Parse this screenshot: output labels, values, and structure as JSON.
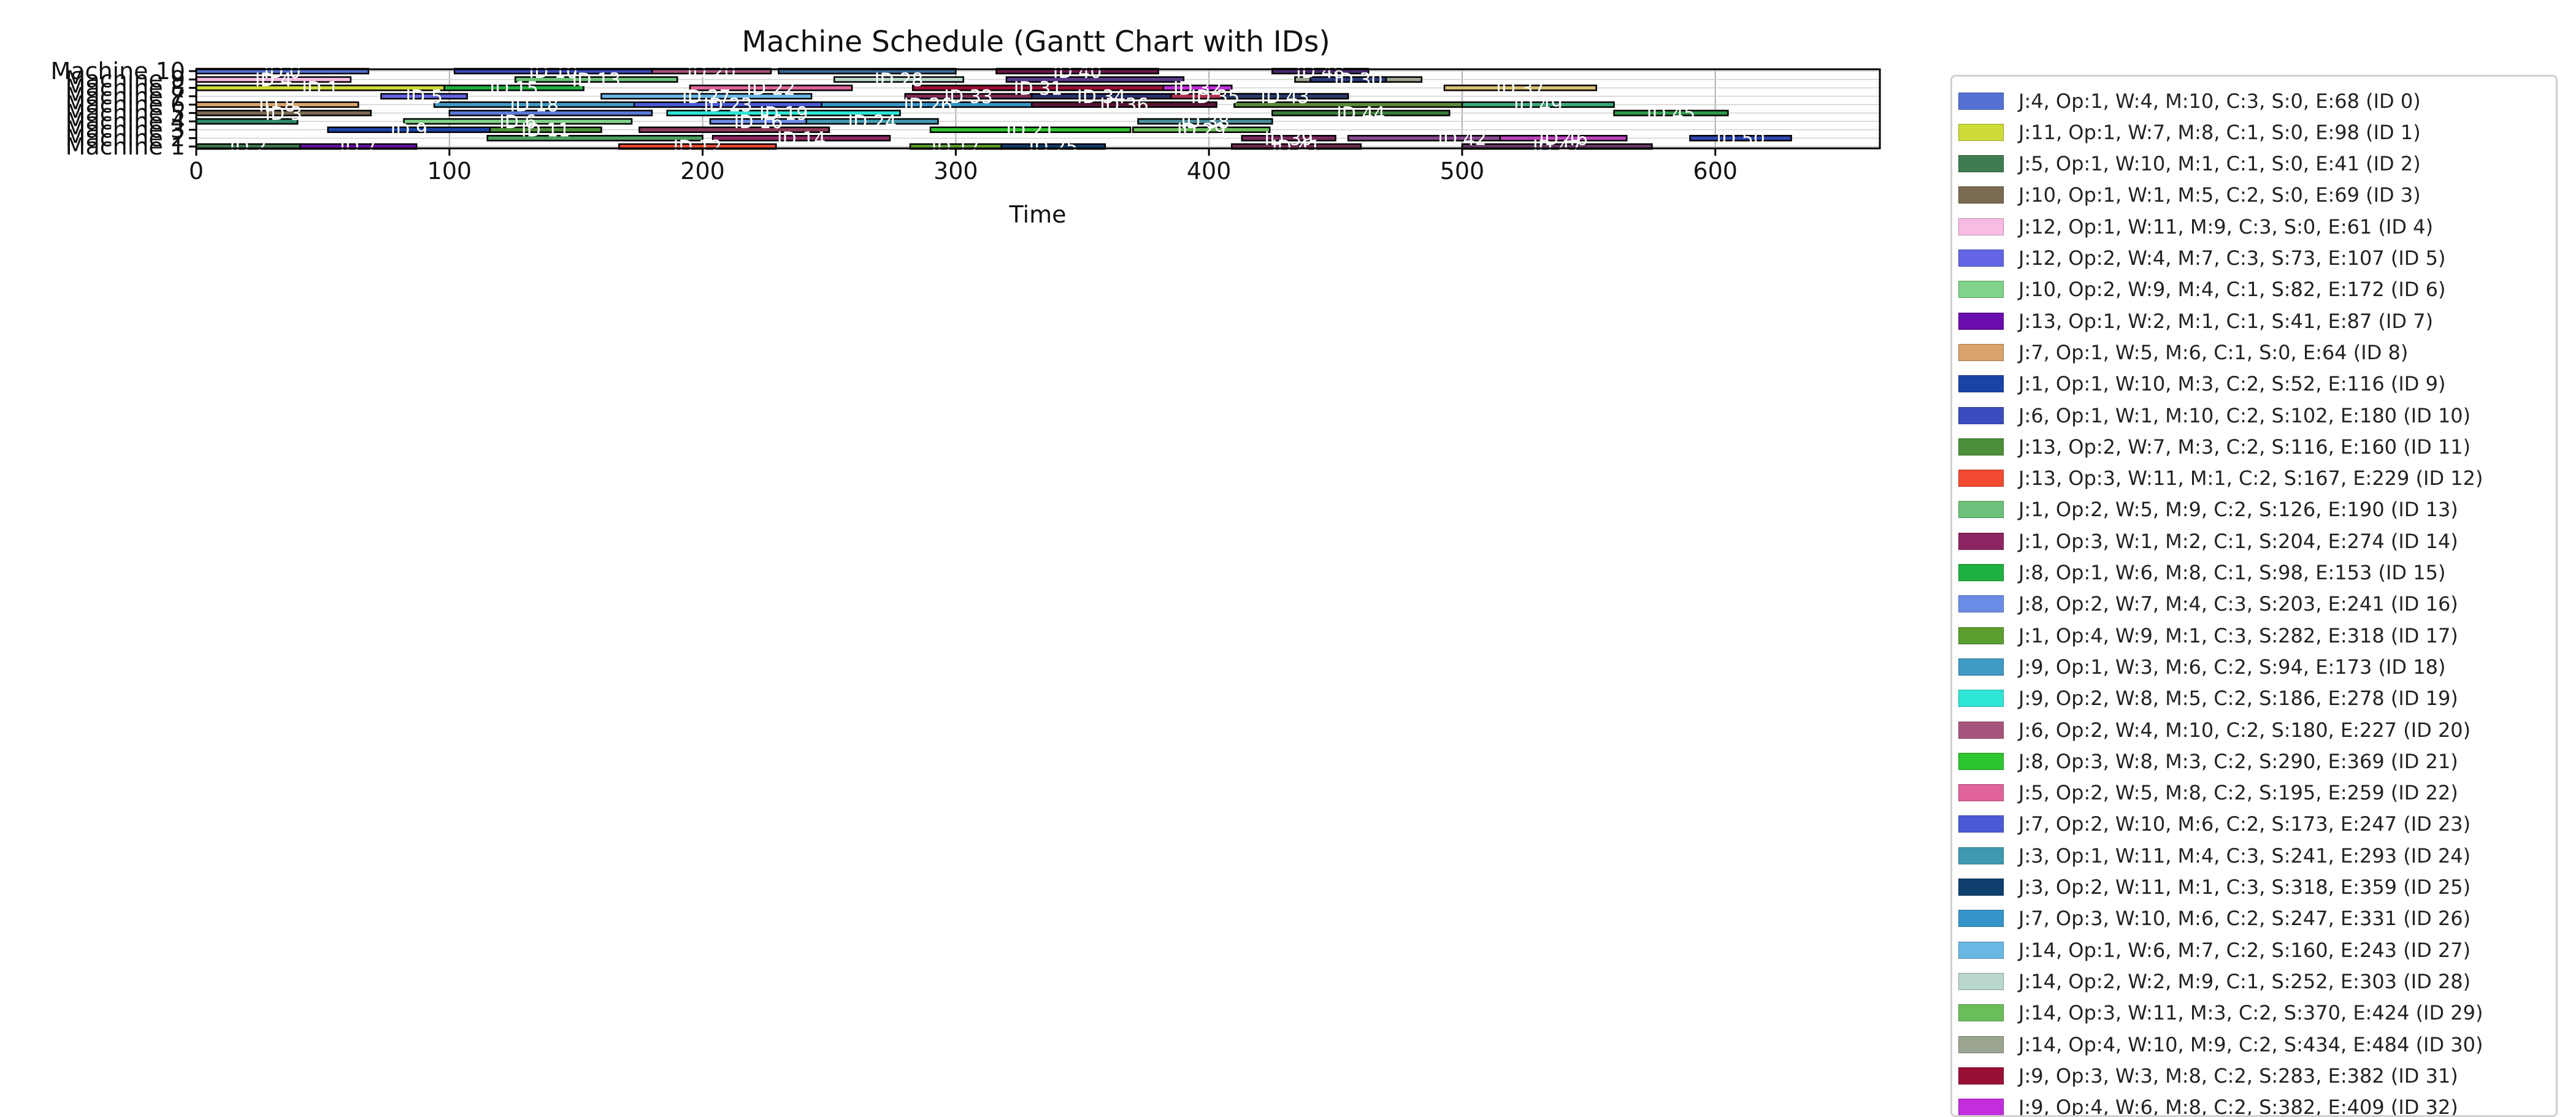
{
  "chart_data": {
    "type": "gantt",
    "title": "Machine Schedule (Gantt Chart with IDs)",
    "xlabel": "Time",
    "ylabel": "",
    "xlim": [
      0,
      665
    ],
    "xticks": [
      0,
      100,
      200,
      300,
      400,
      500,
      600
    ],
    "grid": true,
    "legend_placement": "right, outside plot",
    "machines": [
      "Machine 1",
      "Machine 2",
      "Machine 3",
      "Machine 4",
      "Machine 5",
      "Machine 6",
      "Machine 7",
      "Machine 8",
      "Machine 9",
      "Machine 10"
    ],
    "tasks": [
      {
        "id": 0,
        "label": "ID 0",
        "legend": "J:4, Op:1, W:4, M:10, C:3, S:0, E:68 (ID 0)",
        "machine": 10,
        "start": 0,
        "end": 68,
        "color": "#5472d3"
      },
      {
        "id": 1,
        "label": "ID 1",
        "legend": "J:11, Op:1, W:7, M:8, C:1, S:0, E:98 (ID 1)",
        "machine": 8,
        "start": 0,
        "end": 98,
        "color": "#cddc39"
      },
      {
        "id": 2,
        "label": "ID 2",
        "legend": "J:5, Op:1, W:10, M:1, C:1, S:0, E:41 (ID 2)",
        "machine": 1,
        "start": 0,
        "end": 41,
        "color": "#3e7d4f"
      },
      {
        "id": 3,
        "label": "ID 3",
        "legend": "J:10, Op:1, W:1, M:5, C:2, S:0, E:69 (ID 3)",
        "machine": 5,
        "start": 0,
        "end": 69,
        "color": "#7a6a52"
      },
      {
        "id": 4,
        "label": "ID 4",
        "legend": "J:12, Op:1, W:11, M:9, C:3, S:0, E:61 (ID 4)",
        "machine": 9,
        "start": 0,
        "end": 61,
        "color": "#f8bbe3"
      },
      {
        "id": 5,
        "label": "ID 5",
        "legend": "J:12, Op:2, W:4, M:7, C:3, S:73, E:107 (ID 5)",
        "machine": 7,
        "start": 73,
        "end": 107,
        "color": "#6464e6"
      },
      {
        "id": 6,
        "label": "ID 6",
        "legend": "J:10, Op:2, W:9, M:4, C:1, S:82, E:172 (ID 6)",
        "machine": 4,
        "start": 82,
        "end": 172,
        "color": "#7fd38a"
      },
      {
        "id": 7,
        "label": "ID 7",
        "legend": "J:13, Op:1, W:2, M:1, C:1, S:41, E:87 (ID 7)",
        "machine": 1,
        "start": 41,
        "end": 87,
        "color": "#6a0dad"
      },
      {
        "id": 8,
        "label": "ID 8",
        "legend": "J:7, Op:1, W:5, M:6, C:1, S:0, E:64 (ID 8)",
        "machine": 6,
        "start": 0,
        "end": 64,
        "color": "#d9a36c"
      },
      {
        "id": 9,
        "label": "ID 9",
        "legend": "J:1, Op:1, W:10, M:3, C:2, S:52, E:116 (ID 9)",
        "machine": 3,
        "start": 52,
        "end": 116,
        "color": "#1a43a8"
      },
      {
        "id": 10,
        "label": "ID 10",
        "legend": "J:6, Op:1, W:1, M:10, C:2, S:102, E:180 (ID 10)",
        "machine": 10,
        "start": 102,
        "end": 180,
        "color": "#3b4cc0"
      },
      {
        "id": 11,
        "label": "ID 11",
        "legend": "J:13, Op:2, W:7, M:3, C:2, S:116, E:160 (ID 11)",
        "machine": 3,
        "start": 116,
        "end": 160,
        "color": "#4e8f3a"
      },
      {
        "id": 12,
        "label": "ID 12",
        "legend": "J:13, Op:3, W:11, M:1, C:2, S:167, E:229 (ID 12)",
        "machine": 1,
        "start": 167,
        "end": 229,
        "color": "#f04a30"
      },
      {
        "id": 13,
        "label": "ID 13",
        "legend": "J:1, Op:2, W:5, M:9, C:2, S:126, E:190 (ID 13)",
        "machine": 9,
        "start": 126,
        "end": 190,
        "color": "#6cc27a"
      },
      {
        "id": 14,
        "label": "ID 14",
        "legend": "J:1, Op:3, W:1, M:2, C:1, S:204, E:274 (ID 14)",
        "machine": 2,
        "start": 204,
        "end": 274,
        "color": "#8e2563"
      },
      {
        "id": 15,
        "label": "ID 15",
        "legend": "J:8, Op:1, W:6, M:8, C:1, S:98, E:153 (ID 15)",
        "machine": 8,
        "start": 98,
        "end": 153,
        "color": "#1eb040"
      },
      {
        "id": 16,
        "label": "ID 16",
        "legend": "J:8, Op:2, W:7, M:4, C:3, S:203, E:241 (ID 16)",
        "machine": 4,
        "start": 203,
        "end": 241,
        "color": "#6b8de8"
      },
      {
        "id": 17,
        "label": "ID 17",
        "legend": "J:1, Op:4, W:9, M:1, C:3, S:282, E:318 (ID 17)",
        "machine": 1,
        "start": 282,
        "end": 318,
        "color": "#5c9e2e"
      },
      {
        "id": 18,
        "label": "ID 18",
        "legend": "J:9, Op:1, W:3, M:6, C:2, S:94, E:173 (ID 18)",
        "machine": 6,
        "start": 94,
        "end": 173,
        "color": "#3f9ac4"
      },
      {
        "id": 19,
        "label": "ID 19",
        "legend": "J:9, Op:2, W:8, M:5, C:2, S:186, E:278 (ID 19)",
        "machine": 5,
        "start": 186,
        "end": 278,
        "color": "#2ee6d6"
      },
      {
        "id": 20,
        "label": "ID 20",
        "legend": "J:6, Op:2, W:4, M:10, C:2, S:180, E:227 (ID 20)",
        "machine": 10,
        "start": 180,
        "end": 227,
        "color": "#a8557e"
      },
      {
        "id": 21,
        "label": "ID 21",
        "legend": "J:8, Op:3, W:8, M:3, C:2, S:290, E:369 (ID 21)",
        "machine": 3,
        "start": 290,
        "end": 369,
        "color": "#2ec62e"
      },
      {
        "id": 22,
        "label": "ID 22",
        "legend": "J:5, Op:2, W:5, M:8, C:2, S:195, E:259 (ID 22)",
        "machine": 8,
        "start": 195,
        "end": 259,
        "color": "#e0649a"
      },
      {
        "id": 23,
        "label": "ID 23",
        "legend": "J:7, Op:2, W:10, M:6, C:2, S:173, E:247 (ID 23)",
        "machine": 6,
        "start": 173,
        "end": 247,
        "color": "#4a5ad8"
      },
      {
        "id": 24,
        "label": "ID 24",
        "legend": "J:3, Op:1, W:11, M:4, C:3, S:241, E:293 (ID 24)",
        "machine": 4,
        "start": 241,
        "end": 293,
        "color": "#3f9ab0"
      },
      {
        "id": 25,
        "label": "ID 25",
        "legend": "J:3, Op:2, W:11, M:1, C:3, S:318, E:359 (ID 25)",
        "machine": 1,
        "start": 318,
        "end": 359,
        "color": "#0e3f6e"
      },
      {
        "id": 26,
        "label": "ID 26",
        "legend": "J:7, Op:3, W:10, M:6, C:2, S:247, E:331 (ID 26)",
        "machine": 6,
        "start": 247,
        "end": 331,
        "color": "#3595c8"
      },
      {
        "id": 27,
        "label": "ID 27",
        "legend": "J:14, Op:1, W:6, M:7, C:2, S:160, E:243 (ID 27)",
        "machine": 7,
        "start": 160,
        "end": 243,
        "color": "#6bb8e4"
      },
      {
        "id": 28,
        "label": "ID 28",
        "legend": "J:14, Op:2, W:2, M:9, C:1, S:252, E:303 (ID 28)",
        "machine": 9,
        "start": 252,
        "end": 303,
        "color": "#b9d8cb"
      },
      {
        "id": 29,
        "label": "ID 29",
        "legend": "J:14, Op:3, W:11, M:3, C:2, S:370, E:424 (ID 29)",
        "machine": 3,
        "start": 370,
        "end": 424,
        "color": "#6bbd5a"
      },
      {
        "id": 30,
        "label": "ID 30",
        "legend": "J:14, Op:4, W:10, M:9, C:2, S:434, E:484 (ID 30)",
        "machine": 9,
        "start": 434,
        "end": 484,
        "color": "#9ca592"
      },
      {
        "id": 31,
        "label": "ID 31",
        "legend": "J:9, Op:3, W:3, M:8, C:2, S:283, E:382 (ID 31)",
        "machine": 8,
        "start": 283,
        "end": 382,
        "color": "#9a0f35"
      },
      {
        "id": 32,
        "label": "ID 32",
        "legend": "J:9, Op:4, W:6, M:8, C:2, S:382, E:409 (ID 32)",
        "machine": 8,
        "start": 382,
        "end": 409,
        "color": "#c22edb"
      },
      {
        "id": 33,
        "label": "ID 33",
        "legend": "",
        "machine": 7,
        "start": 280,
        "end": 330,
        "color": "#7a2a55"
      },
      {
        "id": 34,
        "label": "ID 34",
        "legend": "",
        "machine": 7,
        "start": 330,
        "end": 385,
        "color": "#2c2c6a"
      },
      {
        "id": 35,
        "label": "ID 35",
        "legend": "",
        "machine": 7,
        "start": 385,
        "end": 420,
        "color": "#b03050"
      },
      {
        "id": 36,
        "label": "ID 36",
        "legend": "",
        "machine": 6,
        "start": 330,
        "end": 403,
        "color": "#5a1535"
      },
      {
        "id": 37,
        "label": "ID 37",
        "legend": "",
        "machine": 8,
        "start": 493,
        "end": 553,
        "color": "#d8c070"
      },
      {
        "id": 38,
        "label": "ID 38",
        "legend": "",
        "machine": 4,
        "start": 372,
        "end": 425,
        "color": "#4a8c9a"
      },
      {
        "id": 39,
        "label": "ID 39",
        "legend": "",
        "machine": 2,
        "start": 413,
        "end": 450,
        "color": "#7a2a60"
      },
      {
        "id": 40,
        "label": "ID 40",
        "legend": "",
        "machine": 10,
        "start": 316,
        "end": 380,
        "color": "#6a1a4a"
      },
      {
        "id": 41,
        "label": "ID 41",
        "legend": "",
        "machine": 1,
        "start": 409,
        "end": 460,
        "color": "#7a2a55"
      },
      {
        "id": 42,
        "label": "ID 42",
        "legend": "",
        "machine": 2,
        "start": 455,
        "end": 545,
        "color": "#8a4a90"
      },
      {
        "id": 43,
        "label": "ID 43",
        "legend": "",
        "machine": 7,
        "start": 405,
        "end": 455,
        "color": "#2b3a6a"
      },
      {
        "id": 44,
        "label": "ID 44",
        "legend": "",
        "machine": 5,
        "start": 425,
        "end": 495,
        "color": "#3a7a3a"
      },
      {
        "id": 45,
        "label": "ID 45",
        "legend": "",
        "machine": 5,
        "start": 560,
        "end": 605,
        "color": "#2e9a4a"
      },
      {
        "id": 46,
        "label": "ID 46",
        "legend": "",
        "machine": 2,
        "start": 515,
        "end": 565,
        "color": "#c040c0"
      },
      {
        "id": 47,
        "label": "ID 47",
        "legend": "",
        "machine": 1,
        "start": 500,
        "end": 575,
        "color": "#6a3a6a"
      },
      {
        "id": 48,
        "label": "ID 48",
        "legend": "",
        "machine": 10,
        "start": 425,
        "end": 463,
        "color": "#4a2a70"
      },
      {
        "id": 49,
        "label": "ID 49",
        "legend": "",
        "machine": 6,
        "start": 500,
        "end": 560,
        "color": "#3aa87a"
      },
      {
        "id": 50,
        "label": "ID 50",
        "legend": "",
        "machine": 2,
        "start": 590,
        "end": 630,
        "color": "#3045b0"
      },
      {
        "id": 51,
        "label": "",
        "legend": "",
        "machine": 9,
        "start": 320,
        "end": 390,
        "color": "#5c3a8a"
      },
      {
        "id": 52,
        "label": "",
        "legend": "",
        "machine": 4,
        "start": 0,
        "end": 40,
        "color": "#2e8a6a"
      },
      {
        "id": 53,
        "label": "",
        "legend": "",
        "machine": 3,
        "start": 175,
        "end": 250,
        "color": "#8a3a5a"
      },
      {
        "id": 54,
        "label": "",
        "legend": "",
        "machine": 5,
        "start": 100,
        "end": 180,
        "color": "#5a7ad8"
      },
      {
        "id": 55,
        "label": "",
        "legend": "",
        "machine": 2,
        "start": 115,
        "end": 200,
        "color": "#4aa060"
      },
      {
        "id": 56,
        "label": "",
        "legend": "",
        "machine": 10,
        "start": 230,
        "end": 300,
        "color": "#3a6a9a"
      },
      {
        "id": 57,
        "label": "",
        "legend": "",
        "machine": 9,
        "start": 440,
        "end": 470,
        "color": "#2a3a7a"
      },
      {
        "id": 58,
        "label": "",
        "legend": "",
        "machine": 6,
        "start": 410,
        "end": 500,
        "color": "#5a8a3a"
      }
    ]
  }
}
